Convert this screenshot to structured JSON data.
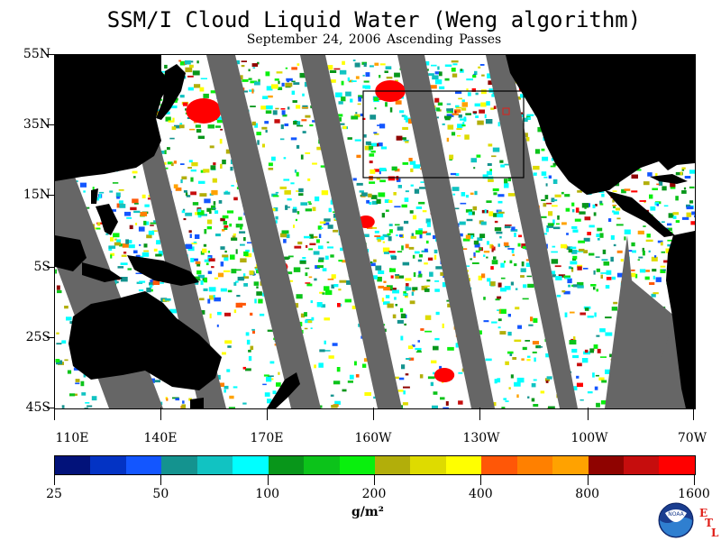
{
  "map": {
    "title": "SSM/I Cloud Liquid Water (Weng algorithm)",
    "subtitle": "September 24, 2006  Ascending Passes",
    "lat_labels": [
      "55N",
      "35N",
      "15N",
      "5S",
      "25S",
      "45S"
    ],
    "lon_labels": [
      "110E",
      "140E",
      "170E",
      "160W",
      "130W",
      "100W",
      "70W"
    ],
    "extent": {
      "lon_min": 110,
      "lon_max": 290,
      "lat_min": -45,
      "lat_max": 55
    },
    "colors": {
      "land": "#000000",
      "no_data": "#666666",
      "ocean": "#ffffff"
    }
  },
  "legend": {
    "colors": [
      "#02127a",
      "#0333c4",
      "#1356ff",
      "#14938f",
      "#11c3c2",
      "#00ffff",
      "#08961a",
      "#0cc31a",
      "#09f00d",
      "#b2ae0a",
      "#dedb00",
      "#ffff00",
      "#ff5707",
      "#ff8000",
      "#ffa200",
      "#8f0300",
      "#c60d0d",
      "#ff0000"
    ],
    "tick_labels": [
      "25",
      "50",
      "100",
      "200",
      "400",
      "800",
      "1600"
    ],
    "units": "g/m²"
  },
  "logo": {
    "label": "NOAA",
    "etl_letters": [
      "E",
      "T",
      "L"
    ]
  }
}
